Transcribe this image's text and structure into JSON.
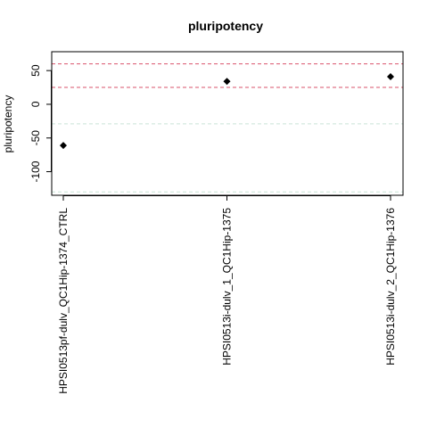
{
  "chart_data": {
    "type": "scatter",
    "title": "pluripotency",
    "xlabel": "",
    "ylabel": "pluripotency",
    "categories": [
      "HPSI0513pf-dulv_QC1Hip-1374_CTRL",
      "HPSI0513i-dulv_1_QC1Hip-1375",
      "HPSI0513i-dulv_2_QC1Hip-1376"
    ],
    "values": [
      -61,
      34,
      41
    ],
    "ylim": [
      -135,
      78
    ],
    "y_ticks": [
      -100,
      -50,
      0,
      50
    ],
    "reference_lines": [
      {
        "y": 60,
        "color": "#d9536b",
        "style": "dashed"
      },
      {
        "y": 25,
        "color": "#d9536b",
        "style": "dashed"
      },
      {
        "y": -29,
        "color": "#c9e3d6",
        "style": "dashed"
      },
      {
        "y": -130,
        "color": "#c9e3d6",
        "style": "dashed"
      }
    ],
    "marker": "diamond",
    "marker_color": "#000000",
    "grid": false,
    "legend": "none"
  }
}
